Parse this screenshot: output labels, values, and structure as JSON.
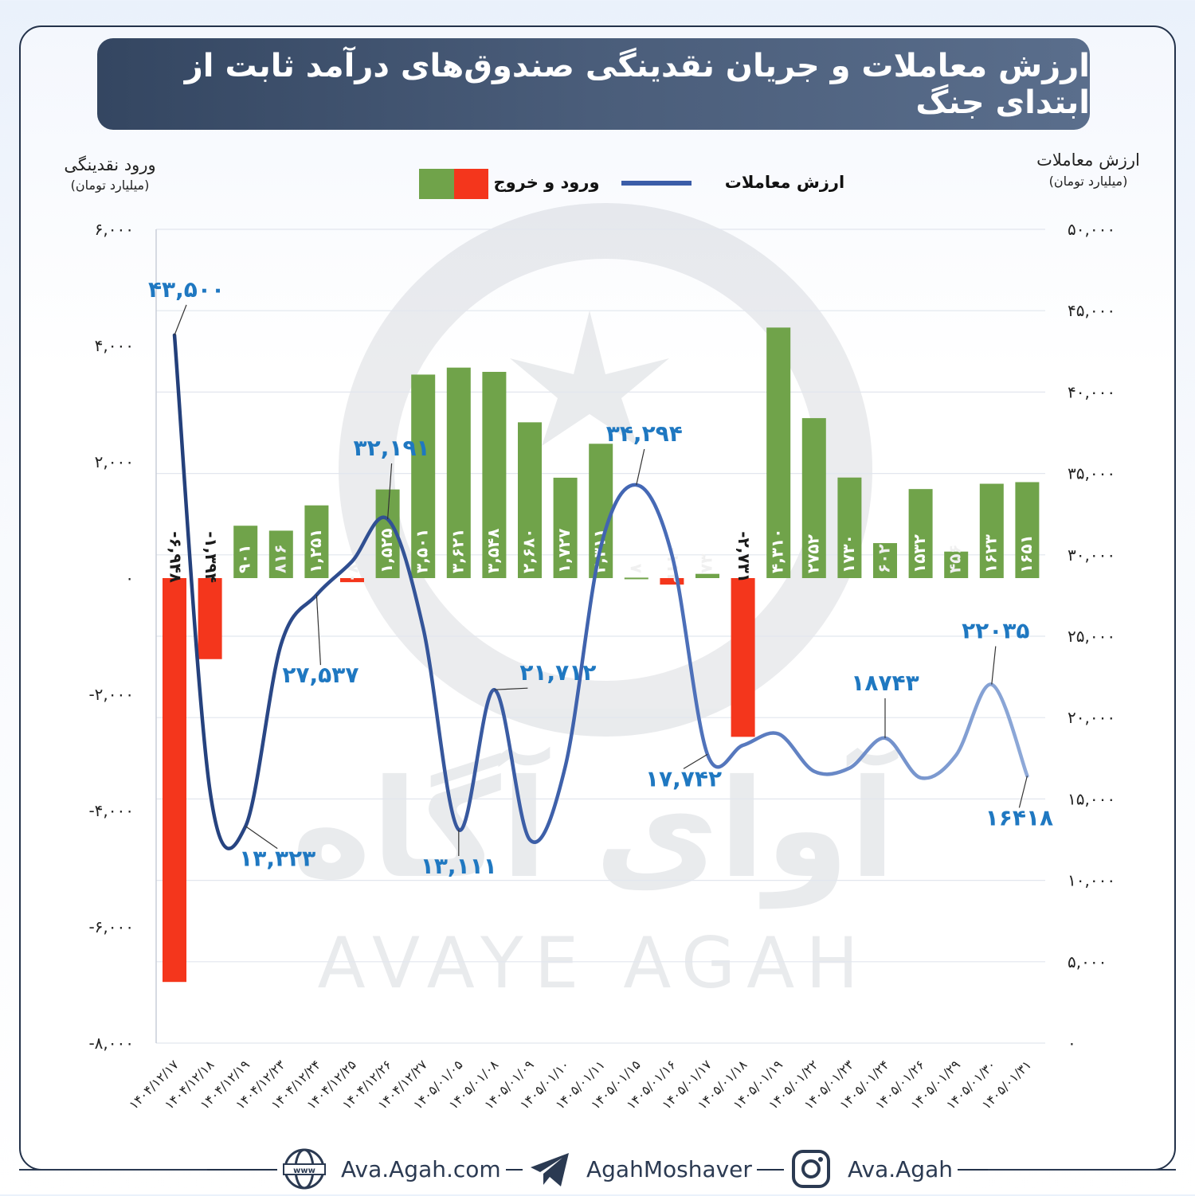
{
  "title": "ارزش معاملات و جریان نقدینگی صندوق‌های درآمد ثابت از ابتدای جنگ",
  "chart_data": {
    "type": "bar+line",
    "left_axis": {
      "title": "ورود نقدینگی",
      "unit": "(میلیارد تومان)",
      "ticks": [
        "۶,۰۰۰",
        "۴,۰۰۰",
        "۲,۰۰۰",
        "۰",
        "-۲,۰۰۰",
        "-۴,۰۰۰",
        "-۶,۰۰۰",
        "-۸,۰۰۰"
      ],
      "tick_values": [
        6000,
        4000,
        2000,
        0,
        -2000,
        -4000,
        -6000,
        -8000
      ],
      "ylim": [
        -8000,
        6000
      ]
    },
    "right_axis": {
      "title": "ارزش معاملات",
      "unit": "(میلیارد تومان)",
      "ticks": [
        "۵۰,۰۰۰",
        "۴۵,۰۰۰",
        "۴۰,۰۰۰",
        "۳۵,۰۰۰",
        "۳۰,۰۰۰",
        "۲۵,۰۰۰",
        "۲۰,۰۰۰",
        "۱۵,۰۰۰",
        "۱۰,۰۰۰",
        "۵,۰۰۰",
        "۰"
      ],
      "tick_values": [
        50000,
        45000,
        40000,
        35000,
        30000,
        25000,
        20000,
        15000,
        10000,
        5000,
        0
      ],
      "ylim": [
        0,
        50000
      ]
    },
    "legend": {
      "line_label": "ارزش معاملات",
      "bar_label": "ورود و خروج",
      "placement": "top-center"
    },
    "categories": [
      "۱۴۰۴/۱۲/۱۷",
      "۱۴۰۴/۱۲/۱۸",
      "۱۴۰۴/۱۲/۱۹",
      "۱۴۰۴/۱۲/۲۳",
      "۱۴۰۴/۱۲/۲۴",
      "۱۴۰۴/۱۲/۲۵",
      "۱۴۰۴/۱۲/۲۶",
      "۱۴۰۴/۱۲/۲۷",
      "۱۴۰۵/۰۱/۰۵",
      "۱۴۰۵/۰۱/۰۸",
      "۱۴۰۵/۰۱/۰۹",
      "۱۴۰۵/۰۱/۱۰",
      "۱۴۰۵/۰۱/۱۱",
      "۱۴۰۵/۰۱/۱۵",
      "۱۴۰۵/۰۱/۱۶",
      "۱۴۰۵/۰۱/۱۷",
      "۱۴۰۵/۰۱/۱۸",
      "۱۴۰۵/۰۱/۱۹",
      "۱۴۰۵/۰۱/۲۲",
      "۱۴۰۵/۰۱/۲۳",
      "۱۴۰۵/۰۱/۲۴",
      "۱۴۰۵/۰۱/۲۶",
      "۱۴۰۵/۰۱/۲۹",
      "۱۴۰۵/۰۱/۳۰",
      "۱۴۰۵/۰۱/۳۱"
    ],
    "bars": {
      "name": "ورود و خروج",
      "values": [
        -6948,
        -1394,
        901,
        816,
        1251,
        -70,
        1525,
        3501,
        3621,
        3548,
        2680,
        1727,
        2311,
        8,
        -112,
        73,
        -2731,
        4310,
        2752,
        1730,
        602,
        1532,
        456,
        1623,
        1651
      ],
      "labels": [
        "-۶,۹۴۸",
        "-۱,۳۹۴",
        "۹۰۱",
        "۸۱۶",
        "۱,۲۵۱",
        "-۷۰",
        "۱,۵۲۵",
        "۳,۵۰۱",
        "۳,۶۲۱",
        "۳,۵۴۸",
        "۲,۶۸۰",
        "۱,۷۲۷",
        "۲,۳۱۱",
        "۸",
        "-۱۱۲",
        "۷۳",
        "-۲,۷۳۱",
        "۴,۳۱۰",
        "۲۷۵۲",
        "۱۷۳۰",
        "۶۰۲",
        "۱۵۳۲",
        "۴۵۶",
        "۱۶۲۳",
        "۱۶۵۱"
      ],
      "positive_color": "#70a34a",
      "negative_color": "#f4361c"
    },
    "line": {
      "name": "ارزش معاملات",
      "color": "#3b5da8",
      "values": [
        43500,
        15500,
        13323,
        24500,
        27537,
        29600,
        32191,
        25500,
        13111,
        21712,
        12500,
        17000,
        30500,
        34294,
        30000,
        17742,
        18300,
        19000,
        16700,
        16900,
        18743,
        16300,
        17700,
        22035,
        16418
      ],
      "callouts": [
        {
          "index": 0,
          "label": "۴۳,۵۰۰"
        },
        {
          "index": 2,
          "label": "۱۳,۳۲۳"
        },
        {
          "index": 4,
          "label": "۲۷,۵۳۷"
        },
        {
          "index": 6,
          "label": "۳۲,۱۹۱"
        },
        {
          "index": 8,
          "label": "۱۳,۱۱۱"
        },
        {
          "index": 9,
          "label": "۲۱,۷۱۲"
        },
        {
          "index": 13,
          "label": "۳۴,۲۹۴"
        },
        {
          "index": 15,
          "label": "۱۷,۷۴۲"
        },
        {
          "index": 20,
          "label": "۱۸۷۴۳"
        },
        {
          "index": 23,
          "label": "۲۲۰۳۵"
        },
        {
          "index": 24,
          "label": "۱۶۴۱۸"
        }
      ]
    },
    "grid": true
  },
  "watermark": {
    "persian": "آوای آگاه",
    "latin": "AVAYE AGAH"
  },
  "footer": {
    "website": "Ava.Agah.com",
    "telegram": "AgahMoshaver",
    "instagram": "Ava.Agah",
    "icons": [
      "globe-icon",
      "telegram-icon",
      "instagram-icon"
    ]
  }
}
